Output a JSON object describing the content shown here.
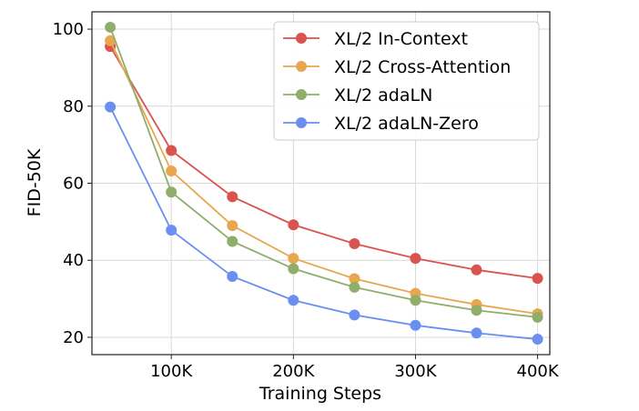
{
  "chart_data": {
    "type": "line",
    "xlabel": "Training Steps",
    "ylabel": "FID-50K",
    "x": [
      50000,
      100000,
      150000,
      200000,
      250000,
      300000,
      350000,
      400000
    ],
    "xlim": [
      35000,
      410000
    ],
    "ylim": [
      15.5,
      104.5
    ],
    "xticks": [
      100000,
      200000,
      300000,
      400000
    ],
    "xtick_labels": [
      "100K",
      "200K",
      "300K",
      "400K"
    ],
    "yticks": [
      20,
      40,
      60,
      80,
      100
    ],
    "ytick_labels": [
      "20",
      "40",
      "60",
      "80",
      "100"
    ],
    "grid": true,
    "legend_position": "top-right",
    "series": [
      {
        "name": "XL/2 In-Context",
        "color": "#d9534f",
        "values": [
          95.5,
          68.5,
          56.5,
          49.2,
          44.3,
          40.5,
          37.5,
          35.3
        ]
      },
      {
        "name": "XL/2 Cross-Attention",
        "color": "#e8a74f",
        "values": [
          97.0,
          63.2,
          49.0,
          40.5,
          35.2,
          31.4,
          28.5,
          26.1
        ]
      },
      {
        "name": "XL/2 adaLN",
        "color": "#8fad6b",
        "values": [
          100.5,
          57.7,
          44.9,
          37.8,
          33.0,
          29.6,
          27.0,
          25.2
        ]
      },
      {
        "name": "XL/2 adaLN-Zero",
        "color": "#6b8ff0",
        "values": [
          79.8,
          47.8,
          35.8,
          29.6,
          25.8,
          23.1,
          21.1,
          19.5
        ]
      }
    ]
  }
}
